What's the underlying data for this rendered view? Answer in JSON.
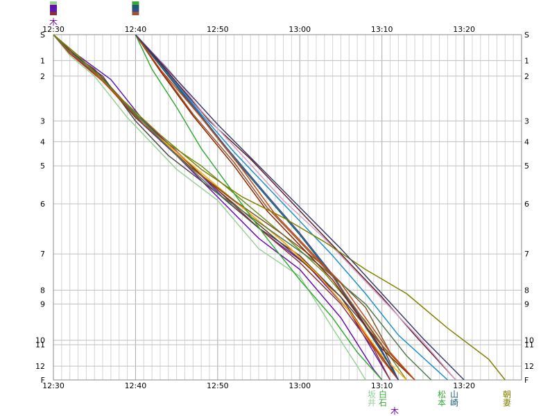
{
  "chart_data": {
    "type": "line",
    "title": "",
    "xlabel": "",
    "ylabel": "",
    "grid": true,
    "x_unit": "time (HH:MM)",
    "xlim": [
      "12:30",
      "13:27"
    ],
    "x_ticks": [
      "12:30",
      "12:40",
      "12:50",
      "13:00",
      "13:10",
      "13:20"
    ],
    "y_ticks": [
      "S",
      "1",
      "2",
      "3",
      "4",
      "5",
      "6",
      "7",
      "8",
      "9",
      "10",
      "11",
      "12",
      "F"
    ],
    "y_tick_positions": [
      0,
      0.75,
      1.2,
      2.5,
      3.1,
      3.8,
      4.9,
      6.35,
      7.4,
      7.8,
      8.85,
      8.98,
      9.6,
      10
    ],
    "series": [
      {
        "color": "#98d098",
        "x": [
          "12:30",
          "12:31",
          "12:32",
          "12:35",
          "12:39",
          "12:45",
          "12:50",
          "12:55",
          "13:00",
          "13:04",
          "13:07",
          "13:08"
        ],
        "y": [
          0,
          0.3,
          0.6,
          1.2,
          2.4,
          3.9,
          4.8,
          6.2,
          7.0,
          8.5,
          9.6,
          10
        ]
      },
      {
        "color": "#6a0dad",
        "x": [
          "12:30",
          "12:32",
          "12:36",
          "12:40",
          "12:45",
          "12:50",
          "12:55",
          "13:00",
          "13:05",
          "13:09",
          "13:10"
        ],
        "y": [
          0,
          0.55,
          1.3,
          2.4,
          3.5,
          4.7,
          5.9,
          6.8,
          8.2,
          9.7,
          10
        ]
      },
      {
        "color": "#5a1ab4",
        "x": [
          "12:30",
          "12:33",
          "12:37",
          "12:41",
          "12:46",
          "12:51",
          "12:56",
          "13:01",
          "13:06",
          "13:10",
          "13:11"
        ],
        "y": [
          0,
          0.6,
          1.3,
          2.5,
          3.6,
          4.8,
          5.8,
          6.7,
          8.0,
          9.6,
          10
        ]
      },
      {
        "color": "#8b3030",
        "x": [
          "12:30",
          "12:32",
          "12:35",
          "12:40",
          "12:45",
          "12:50",
          "12:55",
          "13:00",
          "13:05",
          "13:09",
          "13:11"
        ],
        "y": [
          0,
          0.5,
          1.0,
          2.3,
          3.4,
          4.5,
          5.6,
          6.6,
          7.8,
          9.1,
          10
        ]
      },
      {
        "color": "#6b3a1f",
        "x": [
          "12:30",
          "12:32",
          "12:35",
          "12:40",
          "12:45",
          "12:50",
          "12:55",
          "13:00",
          "13:05",
          "13:09",
          "13:12"
        ],
        "y": [
          0,
          0.45,
          1.05,
          2.4,
          3.4,
          4.5,
          5.5,
          6.5,
          7.6,
          9.0,
          10
        ]
      },
      {
        "color": "#4a4a4a",
        "x": [
          "12:30",
          "12:32",
          "12:36",
          "12:40",
          "12:44",
          "12:50",
          "12:55",
          "13:00",
          "13:05",
          "13:10",
          "13:12"
        ],
        "y": [
          0,
          0.5,
          1.2,
          2.5,
          3.5,
          4.6,
          5.6,
          6.4,
          7.6,
          9.0,
          10
        ]
      },
      {
        "color": "#6b8e23",
        "x": [
          "12:30",
          "12:33",
          "12:38",
          "12:43",
          "12:48",
          "12:53",
          "12:58",
          "13:03",
          "13:08",
          "13:13"
        ],
        "y": [
          0,
          0.6,
          1.8,
          3.0,
          3.8,
          4.8,
          5.8,
          6.9,
          8.3,
          10
        ]
      },
      {
        "color": "#cc3300",
        "x": [
          "12:30",
          "12:32",
          "12:36",
          "12:41",
          "12:47",
          "12:53",
          "12:58",
          "13:02",
          "13:06",
          "13:10",
          "13:12"
        ],
        "y": [
          0,
          0.55,
          1.35,
          2.6,
          3.9,
          5.0,
          6.0,
          6.9,
          8.0,
          9.4,
          10
        ]
      },
      {
        "color": "#ffaa00",
        "x": [
          "12:30",
          "12:32",
          "12:36",
          "12:41",
          "12:47",
          "12:53",
          "12:58",
          "13:02",
          "13:06",
          "13:10",
          "13:13"
        ],
        "y": [
          0,
          0.5,
          1.3,
          2.6,
          3.8,
          5.0,
          6.0,
          6.9,
          8.0,
          9.3,
          10
        ]
      },
      {
        "color": "#7a5a2a",
        "x": [
          "12:30",
          "12:32",
          "12:36",
          "12:41",
          "12:46",
          "12:52",
          "12:58",
          "13:03",
          "13:08",
          "13:11",
          "13:14"
        ],
        "y": [
          0,
          0.5,
          1.3,
          2.6,
          3.7,
          4.8,
          5.8,
          6.7,
          7.9,
          9.2,
          10
        ]
      },
      {
        "color": "#507850",
        "x": [
          "12:30",
          "12:32",
          "12:36",
          "12:40",
          "12:45",
          "12:50",
          "12:56",
          "13:02",
          "13:08",
          "13:13",
          "13:16"
        ],
        "y": [
          0,
          0.5,
          1.3,
          2.3,
          3.5,
          4.6,
          5.6,
          6.6,
          7.8,
          9.3,
          10
        ]
      },
      {
        "color": "#36a836",
        "x": [
          "12:40",
          "12:42",
          "12:45",
          "12:48",
          "12:52",
          "12:56",
          "13:00",
          "13:04",
          "13:07",
          "13:10"
        ],
        "y": [
          0,
          1.0,
          2.1,
          3.3,
          4.6,
          5.9,
          7.1,
          8.2,
          9.2,
          10
        ]
      },
      {
        "color": "#1e5a6e",
        "x": [
          "12:40",
          "12:43",
          "12:47",
          "12:51",
          "12:56",
          "13:00",
          "13:04",
          "13:07",
          "13:10",
          "13:12"
        ],
        "y": [
          0,
          0.9,
          2.1,
          3.3,
          4.7,
          5.8,
          7.0,
          8.1,
          9.2,
          10
        ]
      },
      {
        "color": "#2f4f8f",
        "x": [
          "12:40",
          "12:43",
          "12:47",
          "12:51",
          "12:56",
          "13:00",
          "13:04",
          "13:07",
          "13:10",
          "13:12"
        ],
        "y": [
          0,
          0.85,
          2.05,
          3.25,
          4.65,
          5.75,
          6.95,
          8.05,
          9.15,
          10
        ]
      },
      {
        "color": "#a0522d",
        "x": [
          "12:40",
          "12:43",
          "12:47",
          "12:52",
          "12:56",
          "13:00",
          "13:04",
          "13:07",
          "13:10",
          "13:14"
        ],
        "y": [
          0,
          1.0,
          2.3,
          3.7,
          5.0,
          6.0,
          7.0,
          8.0,
          9.0,
          10
        ]
      },
      {
        "color": "#8b2500",
        "x": [
          "12:40",
          "12:43",
          "12:47",
          "12:52",
          "12:56",
          "13:00",
          "13:04",
          "13:07",
          "13:10",
          "13:14"
        ],
        "y": [
          0,
          1.05,
          2.35,
          3.8,
          5.1,
          6.1,
          7.1,
          8.1,
          9.1,
          10
        ]
      },
      {
        "color": "#c14a14",
        "x": [
          "12:40",
          "12:43",
          "12:48",
          "12:53",
          "12:57",
          "13:01",
          "13:05",
          "13:08",
          "13:11",
          "13:14"
        ],
        "y": [
          0,
          1.0,
          2.4,
          3.9,
          5.2,
          6.2,
          7.2,
          8.2,
          9.2,
          10
        ]
      },
      {
        "color": "#1e90c8",
        "x": [
          "12:40",
          "12:44",
          "12:48",
          "12:52",
          "12:56",
          "13:00",
          "13:04",
          "13:08",
          "13:12",
          "13:18"
        ],
        "y": [
          0,
          1.1,
          2.3,
          3.4,
          4.4,
          5.4,
          6.4,
          7.5,
          8.7,
          10
        ]
      },
      {
        "color": "#5a2030",
        "x": [
          "12:40",
          "12:44",
          "12:49",
          "12:54",
          "12:58",
          "13:02",
          "13:06",
          "13:10",
          "13:14",
          "13:19"
        ],
        "y": [
          0,
          1.1,
          2.5,
          3.6,
          4.6,
          5.6,
          6.6,
          7.6,
          8.7,
          10
        ]
      },
      {
        "color": "#d8a0c8",
        "x": [
          "12:40",
          "12:44",
          "12:48",
          "12:53",
          "12:58",
          "13:03",
          "13:07",
          "13:11",
          "13:15",
          "13:19"
        ],
        "y": [
          0,
          1.0,
          2.2,
          3.5,
          4.8,
          5.9,
          6.9,
          7.9,
          8.9,
          10
        ]
      },
      {
        "color": "#808000",
        "x": [
          "12:30",
          "12:33",
          "12:38",
          "12:43",
          "12:48",
          "12:53",
          "12:58",
          "13:03",
          "13:08",
          "13:13",
          "13:18",
          "13:23",
          "13:25"
        ],
        "y": [
          0,
          0.6,
          1.8,
          2.9,
          3.9,
          4.7,
          5.3,
          6.0,
          6.8,
          7.5,
          8.5,
          9.4,
          10
        ]
      },
      {
        "color": "#3a3a6a",
        "x": [
          "12:40",
          "12:45",
          "12:50",
          "12:55",
          "13:00",
          "13:05",
          "13:10",
          "13:15",
          "13:20"
        ],
        "y": [
          0,
          1.3,
          2.6,
          3.8,
          5.0,
          6.2,
          7.5,
          8.8,
          10
        ]
      }
    ],
    "runners_top": [
      {
        "label": "木",
        "color": "#6a0dad"
      }
    ],
    "runners_bottom": [
      {
        "label": "坂",
        "color": "#98d098"
      },
      {
        "label": "井",
        "color": "#98d098"
      },
      {
        "label": "白",
        "color": "#36a836"
      },
      {
        "label": "石",
        "color": "#36a836"
      },
      {
        "label": "木",
        "color": "#6a0dad"
      },
      {
        "label": "松",
        "color": "#36a836"
      },
      {
        "label": "本",
        "color": "#36a836"
      },
      {
        "label": "山",
        "color": "#1e5a6e"
      },
      {
        "label": "崎",
        "color": "#1e5a6e"
      },
      {
        "label": "朝",
        "color": "#808000"
      },
      {
        "label": "妻",
        "color": "#808000"
      }
    ]
  }
}
